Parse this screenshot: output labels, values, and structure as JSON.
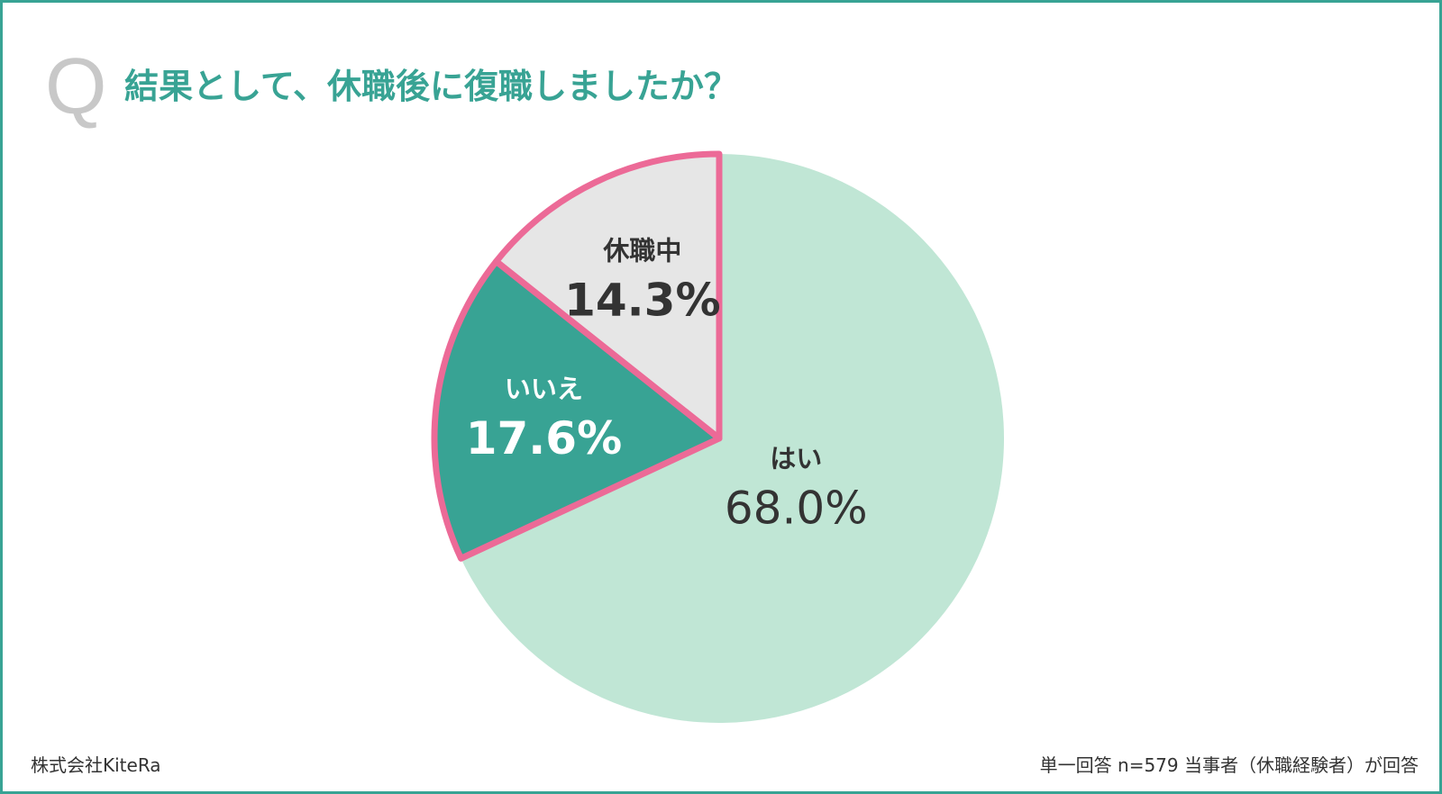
{
  "header": {
    "q_mark": "Q",
    "title": "結果として、休職後に復職しましたか？"
  },
  "chart_data": {
    "type": "pie",
    "title": "結果として、休職後に復職しましたか？",
    "slices": [
      {
        "label": "はい",
        "value": 68.0,
        "display": "68.0%",
        "color": "#c0e6d5",
        "text_color": "#333333",
        "highlight": false
      },
      {
        "label": "いいえ",
        "value": 17.6,
        "display": "17.6%",
        "color": "#38a394",
        "text_color": "#ffffff",
        "highlight": true
      },
      {
        "label": "休職中",
        "value": 14.3,
        "display": "14.3%",
        "color": "#e6e6e6",
        "text_color": "#333333",
        "highlight": true
      }
    ],
    "highlight_stroke": "#ec6a97",
    "start": "12 o'clock",
    "direction": "clockwise"
  },
  "footer": {
    "company": "株式会社KiteRa",
    "note": "単一回答 n=579 当事者（休職経験者）が回答"
  }
}
